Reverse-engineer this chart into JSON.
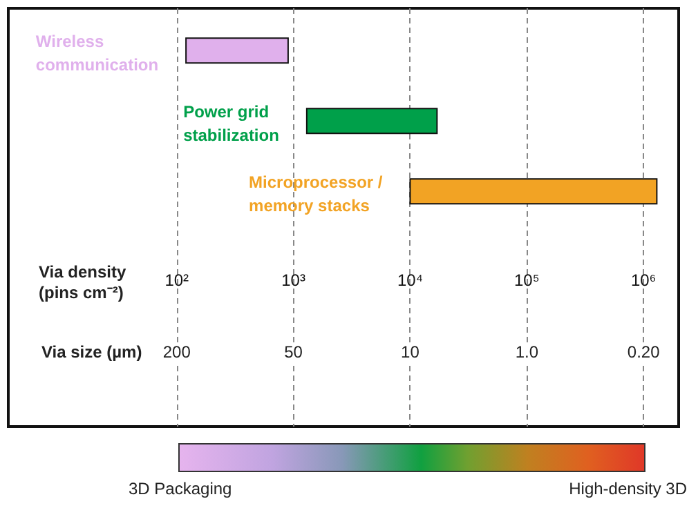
{
  "chart_data": {
    "type": "bar",
    "orientation": "horizontal",
    "categories": [
      "Wireless\ncommunication",
      "Power grid\nstabilization",
      "Microprocessor /\nmemory stacks"
    ],
    "base": [
      120,
      1300,
      10000
    ],
    "values": [
      780,
      15700,
      1290000
    ],
    "colors": [
      "#e0b0ec",
      "#00a04a",
      "#f2a324"
    ],
    "log": "x",
    "xlim": [
      3.6,
      2000000
    ],
    "xticks": [
      {
        "value": 100,
        "label": "10²"
      },
      {
        "value": 1000,
        "label": "10³"
      },
      {
        "value": 10000,
        "label": "10⁴"
      },
      {
        "value": 100000,
        "label": "10⁵"
      },
      {
        "value": 1000000,
        "label": "10⁶"
      }
    ],
    "xlabel": "Via density\n(pins cm⁻²)",
    "grid": "x",
    "annotations": [
      "Via size (µm)",
      "200",
      "50",
      "10",
      "1.0",
      "0.20",
      "3D Packaging",
      "High-density 3D"
    ]
  }
}
